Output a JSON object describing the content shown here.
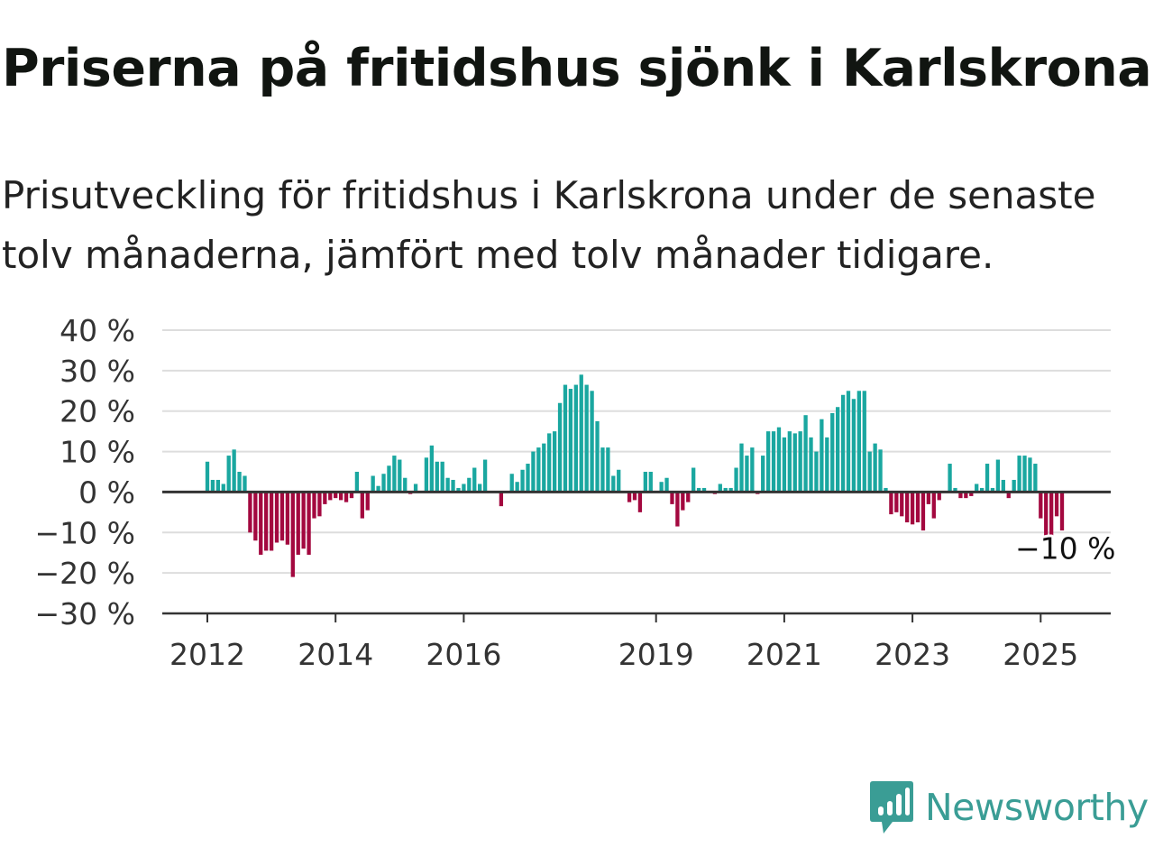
{
  "title": "Priserna på fritidshus sjönk i Karlskrona",
  "subtitle": "Prisutveckling för fritidshus i Karlskrona under de senaste tolv månaderna, jämfört med tolv månader tidigare.",
  "brand": {
    "name": "Newsworthy",
    "icon": "newsworthy-logo-icon"
  },
  "colors": {
    "positive": "#1aa7a0",
    "negative": "#a3083f",
    "grid": "#dddddd",
    "axis": "#333333",
    "brand": "#3a9d95"
  },
  "chart_data": {
    "type": "bar",
    "ylim": [
      -30,
      40
    ],
    "yticks": [
      40,
      30,
      20,
      10,
      0,
      -10,
      -20,
      -30
    ],
    "ytick_labels": [
      "40 %",
      "30 %",
      "20 %",
      "10 %",
      "0 %",
      "−10 %",
      "−20 %",
      "−30 %"
    ],
    "grid": true,
    "xtick_labels": [
      "2012",
      "2014",
      "2016",
      "2019",
      "2021",
      "2023",
      "2025"
    ],
    "start": "2012-01",
    "values": [
      7.5,
      3,
      3,
      2,
      9,
      10.5,
      5,
      4,
      -10,
      -12,
      -15.5,
      -14.5,
      -14.5,
      -12.5,
      -12,
      -13,
      -21,
      -15.5,
      -14,
      -15.5,
      -6.5,
      -6,
      -3,
      -2,
      -1.5,
      -2,
      -2.5,
      -1.5,
      5,
      -6.5,
      -4.5,
      4,
      1.5,
      4.5,
      6.5,
      9,
      8,
      3.5,
      -0.5,
      2,
      0,
      8.5,
      11.5,
      7.5,
      7.5,
      3.5,
      3,
      1,
      2,
      3.5,
      6,
      2,
      8,
      0,
      0,
      -3.5,
      0,
      4.5,
      2.5,
      5.5,
      7,
      10,
      11,
      12,
      14.5,
      15,
      22,
      26.5,
      25.5,
      26.5,
      29,
      26.5,
      25,
      17.5,
      11,
      11,
      4,
      5.5,
      0,
      -2.5,
      -2,
      -5,
      5,
      5,
      0,
      2.5,
      3.5,
      -3,
      -8.5,
      -4.5,
      -2.5,
      6,
      1,
      1,
      0,
      -0.5,
      2,
      1,
      1,
      6,
      12,
      9,
      11,
      -0.5,
      9,
      15,
      15,
      16,
      13.5,
      15,
      14.5,
      15,
      19,
      13.5,
      10,
      18,
      13.5,
      19.5,
      21,
      24,
      25,
      23,
      25,
      25,
      10,
      12,
      10.5,
      1,
      -5.5,
      -5,
      -6,
      -7.5,
      -8,
      -7.5,
      -9.5,
      -3,
      -6.5,
      -2,
      0,
      7,
      1,
      -1.5,
      -1.5,
      -1,
      2,
      1,
      7,
      1,
      8,
      3,
      -1.5,
      3,
      9,
      9,
      8.5,
      7,
      -6.5,
      -11.5,
      -12.5,
      -6,
      -9.5
    ],
    "annotation": {
      "text": "−10 %"
    }
  }
}
